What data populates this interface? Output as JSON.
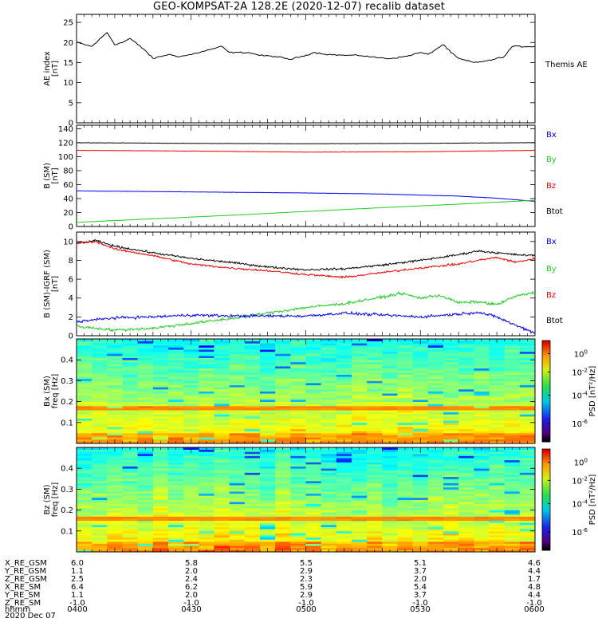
{
  "title": "GEO-KOMPSAT-2A 128.2E (2020-12-07) recalib dataset",
  "colors": {
    "black": "#000000",
    "red": "#ee0000",
    "blue": "#0000ee",
    "green": "#22cc22"
  },
  "chart_data": [
    {
      "type": "line",
      "ylabel": "AE index [nT]",
      "legend": [
        {
          "label": "Themis AE",
          "color": "black"
        }
      ],
      "ylim": [
        0,
        27
      ],
      "yticks": [
        0,
        5,
        10,
        15,
        20,
        25
      ],
      "xlim": [
        0,
        120
      ],
      "series": [
        {
          "name": "Themis AE",
          "color": "black",
          "x": [
            0,
            4,
            8,
            10,
            12,
            14,
            18,
            20,
            24,
            27,
            30,
            34,
            38,
            40,
            45,
            48,
            52,
            56,
            60,
            62,
            66,
            70,
            74,
            78,
            82,
            86,
            90,
            92,
            96,
            98,
            100,
            102,
            104,
            108,
            112,
            114,
            116,
            120
          ],
          "values": [
            20,
            19,
            22.5,
            19.5,
            20,
            21,
            18,
            16,
            17,
            16.5,
            17,
            18,
            19,
            17.5,
            17.5,
            16.8,
            16.5,
            15.8,
            16.8,
            17.5,
            17,
            16.8,
            16.8,
            16.3,
            16,
            16.5,
            17.5,
            17,
            19.5,
            17.5,
            16,
            15.5,
            15,
            15.5,
            16.5,
            19,
            19,
            19
          ]
        }
      ]
    },
    {
      "type": "line",
      "ylabel": "B (SM) [nT]",
      "legend": [
        {
          "label": "Bx",
          "color": "blue"
        },
        {
          "label": "By",
          "color": "green"
        },
        {
          "label": "Bz",
          "color": "red"
        },
        {
          "label": "Btot",
          "color": "black"
        }
      ],
      "ylim": [
        0,
        145
      ],
      "yticks": [
        0,
        20,
        40,
        60,
        80,
        100,
        120,
        140
      ],
      "xlim": [
        0,
        120
      ],
      "series": [
        {
          "name": "Btot",
          "color": "black",
          "x": [
            0,
            30,
            60,
            90,
            120
          ],
          "values": [
            120,
            119,
            118.5,
            119,
            120
          ]
        },
        {
          "name": "Bz",
          "color": "red",
          "x": [
            0,
            30,
            60,
            90,
            120
          ],
          "values": [
            109,
            108,
            106.5,
            107,
            109
          ]
        },
        {
          "name": "Bx",
          "color": "blue",
          "x": [
            0,
            20,
            40,
            60,
            80,
            100,
            110,
            120
          ],
          "values": [
            51,
            50,
            49,
            48,
            46.5,
            43.5,
            40.5,
            36
          ]
        },
        {
          "name": "By",
          "color": "green",
          "x": [
            0,
            20,
            40,
            60,
            80,
            100,
            120
          ],
          "values": [
            6,
            11,
            16,
            21.5,
            27,
            32,
            37.5
          ]
        }
      ]
    },
    {
      "type": "line",
      "ylabel": "B (SM)-IGRF (SM) [nT]",
      "legend": [
        {
          "label": "Bx",
          "color": "blue"
        },
        {
          "label": "By",
          "color": "green"
        },
        {
          "label": "Bz",
          "color": "red"
        },
        {
          "label": "Btot",
          "color": "black"
        }
      ],
      "ylim": [
        0,
        11
      ],
      "yticks": [
        0,
        2,
        4,
        6,
        8,
        10
      ],
      "xlim": [
        0,
        120
      ],
      "series": [
        {
          "name": "Btot",
          "color": "black",
          "x": [
            0,
            5,
            10,
            20,
            30,
            40,
            50,
            60,
            70,
            80,
            90,
            100,
            105,
            110,
            115,
            120
          ],
          "values": [
            9.8,
            10.1,
            9.5,
            8.8,
            8.2,
            7.8,
            7.3,
            7.0,
            7.1,
            7.5,
            8.0,
            8.6,
            9.0,
            8.8,
            8.6,
            8.5
          ]
        },
        {
          "name": "Bz",
          "color": "red",
          "x": [
            0,
            5,
            10,
            20,
            30,
            40,
            50,
            60,
            70,
            80,
            90,
            100,
            105,
            110,
            115,
            120
          ],
          "values": [
            9.8,
            10.0,
            9.2,
            8.5,
            7.6,
            7.2,
            6.9,
            6.5,
            6.2,
            6.7,
            7.2,
            7.6,
            8.0,
            8.3,
            7.8,
            8.2
          ]
        },
        {
          "name": "By",
          "color": "green",
          "x": [
            0,
            10,
            20,
            30,
            40,
            50,
            60,
            70,
            80,
            85,
            90,
            95,
            100,
            105,
            110,
            115,
            120
          ],
          "values": [
            1.0,
            0.6,
            0.8,
            1.3,
            1.8,
            2.4,
            3.0,
            3.4,
            4.1,
            4.5,
            4.0,
            4.3,
            3.5,
            3.6,
            3.3,
            4.2,
            4.6
          ]
        },
        {
          "name": "Bx",
          "color": "blue",
          "x": [
            0,
            10,
            20,
            30,
            40,
            50,
            60,
            70,
            80,
            90,
            100,
            105,
            110,
            115,
            120
          ],
          "values": [
            1.5,
            1.9,
            2.0,
            2.2,
            2.1,
            2.1,
            2.1,
            2.4,
            2.2,
            2.0,
            2.3,
            2.5,
            2.0,
            1.1,
            0.3
          ]
        }
      ]
    },
    {
      "type": "heatmap",
      "ylabel": "Bx (SM) freq [Hz]",
      "ylim": [
        0,
        0.5
      ],
      "yticks": [
        0.1,
        0.2,
        0.3,
        0.4
      ],
      "colorbar": {
        "label": "PSD [nT^2/Hz]",
        "ticks": [
          "10^0",
          "10^-2",
          "10^-4",
          "10^-6"
        ]
      },
      "band_hz": 0.17
    },
    {
      "type": "heatmap",
      "ylabel": "Bz (SM) freq [Hz]",
      "ylim": [
        0,
        0.5
      ],
      "yticks": [
        0.1,
        0.2,
        0.3,
        0.4
      ],
      "colorbar": {
        "label": "PSD [nT^2/Hz]",
        "ticks": [
          "10^0",
          "10^-2",
          "10^-4",
          "10^-6"
        ]
      },
      "band_hz": 0.16
    }
  ],
  "ephemeris": {
    "rows": [
      {
        "label": "X_RE_GSM",
        "values": [
          "6.0",
          "5.8",
          "5.5",
          "5.1",
          "4.6"
        ]
      },
      {
        "label": "Y_RE_GSM",
        "values": [
          "1.1",
          "2.0",
          "2.9",
          "3.7",
          "4.4"
        ]
      },
      {
        "label": "Z_RE_GSM",
        "values": [
          "2.5",
          "2.4",
          "2.3",
          "2.0",
          "1.7"
        ]
      },
      {
        "label": "X_RE_SM",
        "values": [
          "6.4",
          "6.2",
          "5.9",
          "5.4",
          "4.8"
        ]
      },
      {
        "label": "Y_RE_SM",
        "values": [
          "1.1",
          "2.0",
          "2.9",
          "3.7",
          "4.4"
        ]
      },
      {
        "label": "Z_RE_SM",
        "values": [
          "-1.0",
          "-1.0",
          "-1.0",
          "-1.0",
          "-1.0"
        ]
      },
      {
        "label": "hhmm",
        "values": [
          "0400",
          "0430",
          "0500",
          "0530",
          "0600"
        ]
      }
    ],
    "date": "2020 Dec 07"
  }
}
